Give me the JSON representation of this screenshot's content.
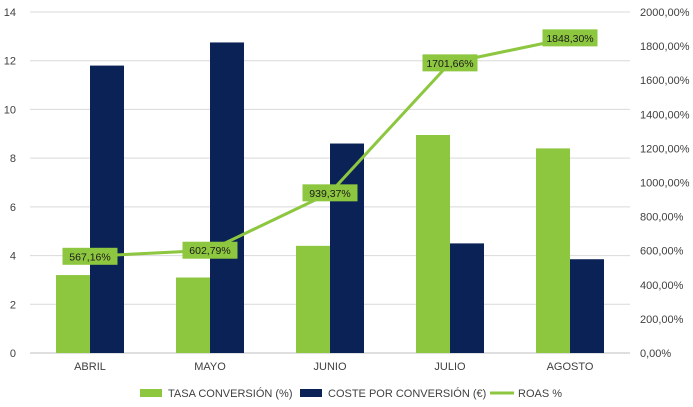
{
  "chart_data": {
    "type": "bar",
    "title": "",
    "categories": [
      "ABRIL",
      "MAYO",
      "JUNIO",
      "JULIO",
      "AGOSTO"
    ],
    "series": [
      {
        "name": "TASA CONVERSIÓN (%)",
        "type": "bar",
        "axis": "left",
        "color": "#8DC63F",
        "values": [
          3.2,
          3.1,
          4.4,
          8.95,
          8.4
        ]
      },
      {
        "name": "COSTE POR CONVERSIÓN (€)",
        "type": "bar",
        "axis": "left",
        "color": "#0B2256",
        "values": [
          11.8,
          12.75,
          8.6,
          4.5,
          3.85
        ]
      },
      {
        "name": "ROAS %",
        "type": "line",
        "axis": "right",
        "color": "#8DC63F",
        "values": [
          567.16,
          602.79,
          939.37,
          1701.66,
          1848.3
        ],
        "labels": [
          "567,16%",
          "602,79%",
          "939,37%",
          "1701,66%",
          "1848,30%"
        ]
      }
    ],
    "y_left": {
      "min": 0,
      "max": 14,
      "ticks": [
        "0",
        "2",
        "4",
        "6",
        "8",
        "10",
        "12",
        "14"
      ]
    },
    "y_right": {
      "min": 0,
      "max": 2000,
      "ticks": [
        "0,00%",
        "200,00%",
        "400,00%",
        "600,00%",
        "800,00%",
        "1000,00%",
        "1200,00%",
        "1400,00%",
        "1600,00%",
        "1800,00%",
        "2000,00%"
      ]
    },
    "grid": true,
    "legend": "bottom"
  }
}
